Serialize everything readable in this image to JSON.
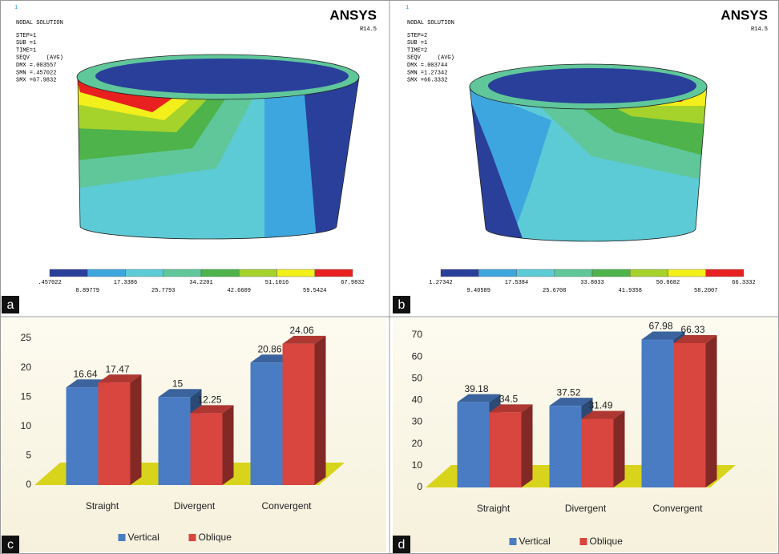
{
  "panels": [
    {
      "label": "a",
      "number": "1",
      "header": "NODAL SOLUTION",
      "info": [
        "STEP=1",
        "SUB =1",
        "TIME=1",
        "SEQV     (AVG)",
        "DMX =.003557",
        "SMN =.457022",
        "SMX =67.9832"
      ],
      "brand": "ANSYS",
      "version": "R14.5",
      "legend_labels": [
        ".457022",
        "8.89779",
        "17.3386",
        "25.7793",
        "34.2201",
        "42.6609",
        "51.1016",
        "59.5424",
        "67.9832"
      ],
      "legend_colors": [
        "#2a3f9a",
        "#3ea6de",
        "#5ccbd6",
        "#5fc79a",
        "#4db34a",
        "#a6d22c",
        "#f2ef1a",
        "#e82020"
      ]
    },
    {
      "label": "b",
      "number": "1",
      "header": "NODAL SOLUTION",
      "info": [
        "STEP=2",
        "SUB =1",
        "TIME=2",
        "SEQV     (AVG)",
        "DMX =.003744",
        "SMN =1.27342",
        "SMX =66.3332"
      ],
      "brand": "ANSYS",
      "version": "R14.5",
      "legend_labels": [
        "1.27342",
        "9.40589",
        "17.5384",
        "25.6708",
        "33.8033",
        "41.9358",
        "50.0682",
        "58.2007",
        "66.3332"
      ],
      "legend_colors": [
        "#2a3f9a",
        "#3ea6de",
        "#5ccbd6",
        "#5fc79a",
        "#4db34a",
        "#a6d22c",
        "#f2ef1a",
        "#e82020"
      ]
    }
  ],
  "chart_data": [
    {
      "type": "bar",
      "label": "c",
      "categories": [
        "Straight",
        "Divergent",
        "Convergent"
      ],
      "series": [
        {
          "name": "Vertical",
          "color": "#4a7cc4",
          "values": [
            16.64,
            15,
            20.86
          ]
        },
        {
          "name": "Oblique",
          "color": "#d9453f",
          "values": [
            17.47,
            12.25,
            24.06
          ]
        }
      ],
      "ylim": [
        0,
        25
      ],
      "yticks": [
        0,
        5,
        10,
        15,
        20,
        25
      ],
      "floor_color": "#d8d41c"
    },
    {
      "type": "bar",
      "label": "d",
      "categories": [
        "Straight",
        "Divergent",
        "Convergent"
      ],
      "series": [
        {
          "name": "Vertical",
          "color": "#4a7cc4",
          "values": [
            39.18,
            37.52,
            67.98
          ]
        },
        {
          "name": "Oblique",
          "color": "#d9453f",
          "values": [
            34.5,
            31.49,
            66.33
          ]
        }
      ],
      "ylim": [
        0,
        70
      ],
      "yticks": [
        0,
        10,
        20,
        30,
        40,
        50,
        60,
        70
      ],
      "floor_color": "#d8d41c"
    }
  ]
}
